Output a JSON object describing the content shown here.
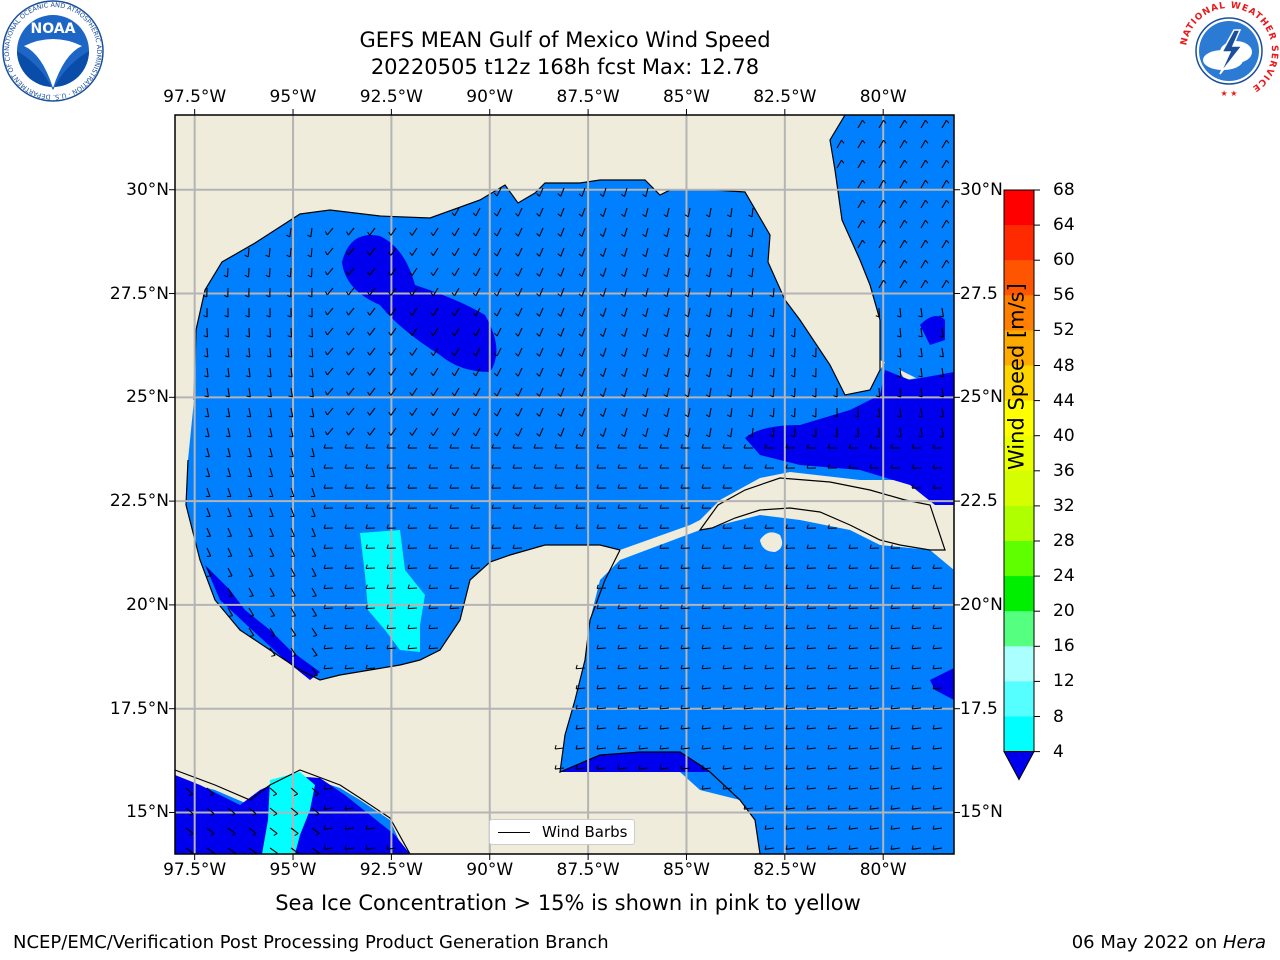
{
  "title": {
    "line1": "GEFS MEAN Gulf of Mexico Wind Speed",
    "line2": "20220505 t12z 168h fcst   Max: 12.78"
  },
  "map": {
    "lon_range": [
      -98,
      -78.2
    ],
    "lat_range": [
      14,
      31.8
    ],
    "lon_ticks": [
      {
        "value": -97.5,
        "label": "97.5°W"
      },
      {
        "value": -95,
        "label": "95°W"
      },
      {
        "value": -92.5,
        "label": "92.5°W"
      },
      {
        "value": -90,
        "label": "90°W"
      },
      {
        "value": -87.5,
        "label": "87.5°W"
      },
      {
        "value": -85,
        "label": "85°W"
      },
      {
        "value": -82.5,
        "label": "82.5°W"
      },
      {
        "value": -80,
        "label": "80°W"
      }
    ],
    "lat_ticks_left": [
      {
        "value": 30,
        "label": "30°N"
      },
      {
        "value": 27.5,
        "label": "27.5°N"
      },
      {
        "value": 25,
        "label": "25°N"
      },
      {
        "value": 22.5,
        "label": "22.5°N"
      },
      {
        "value": 20,
        "label": "20°N"
      },
      {
        "value": 17.5,
        "label": "17.5°N"
      },
      {
        "value": 15,
        "label": "15°N"
      }
    ],
    "lat_ticks_right": [
      {
        "value": 30,
        "label": "30°N"
      },
      {
        "value": 27.5,
        "label": "27.5"
      },
      {
        "value": 25,
        "label": "25°N"
      },
      {
        "value": 22.5,
        "label": "22.5"
      },
      {
        "value": 20,
        "label": "20°N"
      },
      {
        "value": 17.5,
        "label": "17.5"
      },
      {
        "value": 15,
        "label": "15°N"
      }
    ],
    "colors": {
      "land": "#efecdc",
      "ocean_4_8": "#0080ff",
      "ocean_below_4": "#0000ee",
      "ocean_8_12": "#00ffff",
      "grid": "#b4b4b4"
    },
    "legend_label": "Wind Barbs"
  },
  "colorbar": {
    "label": "Wind Speed [m/s]",
    "ticks": [
      68,
      64,
      60,
      56,
      52,
      48,
      44,
      40,
      36,
      32,
      28,
      24,
      20,
      16,
      12,
      8,
      4
    ],
    "colors": [
      "#ff0000",
      "#ff2a00",
      "#ff5500",
      "#ff8000",
      "#ffaa00",
      "#ffd500",
      "#ffff00",
      "#eaff00",
      "#d5ff00",
      "#b0ff00",
      "#60ff00",
      "#00ee00",
      "#55ff80",
      "#aaffff",
      "#55ffff",
      "#00ffff",
      "#0080ff"
    ],
    "extend_color": "#0000ee"
  },
  "note": "Sea Ice Concentration > 15% is shown in pink to yellow",
  "footer": {
    "left": "NCEP/EMC/Verification Post Processing Product Generation Branch",
    "right_date": "06 May 2022 on ",
    "right_host": "Hera"
  },
  "logos": {
    "noaa": {
      "icon": "noaa-logo",
      "text": "NOAA",
      "ring_text": "NATIONAL OCEANIC AND ATMOSPHERIC ADMINISTRATION · U.S. DEPARTMENT OF COMMERCE"
    },
    "nws": {
      "icon": "nws-logo",
      "ring_text": "NATIONAL WEATHER SERVICE"
    }
  }
}
